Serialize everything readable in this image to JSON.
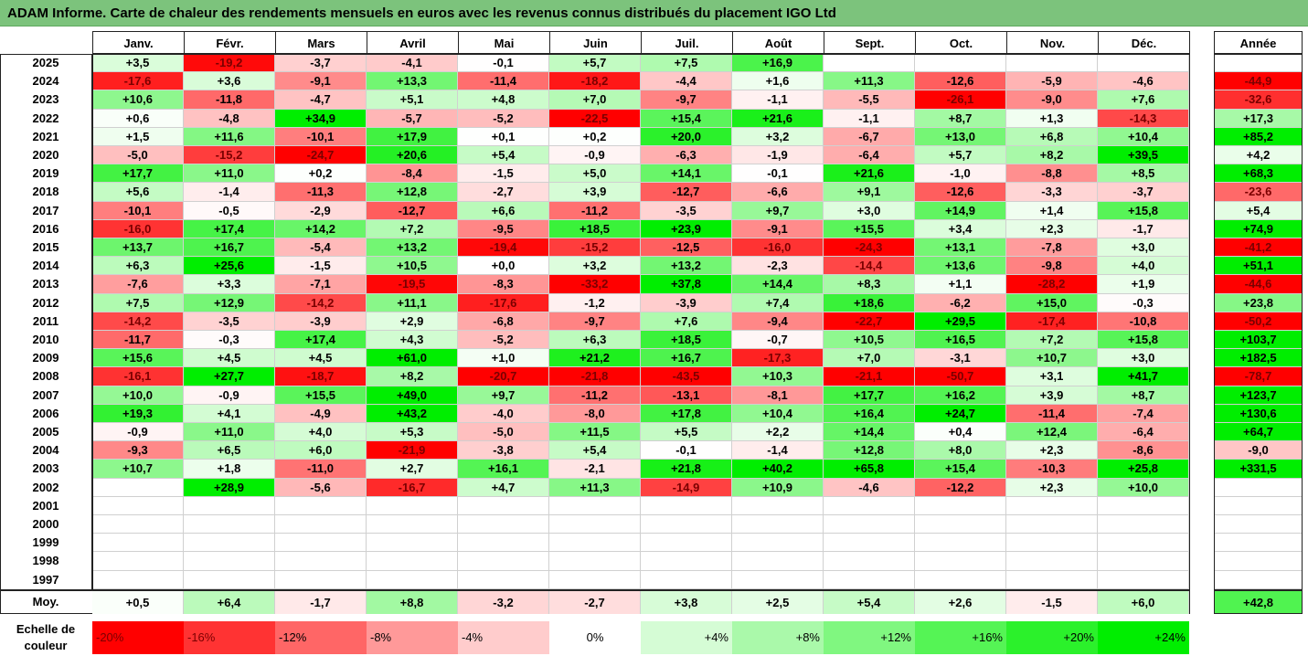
{
  "title": "ADAM Informe. Carte de chaleur des rendements mensuels en euros avec les revenus connus distribués du placement IGO Ltd",
  "colors": {
    "title_bg": "#7cc37c",
    "neg_strong": "#ff0000",
    "pos_strong": "#00ee00",
    "neutral": "#ffffff"
  },
  "chart_data": {
    "type": "heatmap",
    "months": [
      "Janv.",
      "Févr.",
      "Mars",
      "Avril",
      "Mai",
      "Juin",
      "Juil.",
      "Août",
      "Sept.",
      "Oct.",
      "Nov.",
      "Déc."
    ],
    "annual_header": "Année",
    "rows": [
      {
        "year": "2025",
        "values": [
          "+3,5",
          "-19,2",
          "-3,7",
          "-4,1",
          "-0,1",
          "+5,7",
          "+7,5",
          "+16,9",
          "",
          "",
          "",
          ""
        ],
        "annual": ""
      },
      {
        "year": "2024",
        "values": [
          "-17,6",
          "+3,6",
          "-9,1",
          "+13,3",
          "-11,4",
          "-18,2",
          "-4,4",
          "+1,6",
          "+11,3",
          "-12,6",
          "-5,9",
          "-4,6"
        ],
        "annual": "-44,9"
      },
      {
        "year": "2023",
        "values": [
          "+10,6",
          "-11,8",
          "-4,7",
          "+5,1",
          "+4,8",
          "+7,0",
          "-9,7",
          "-1,1",
          "-5,5",
          "-26,1",
          "-9,0",
          "+7,6"
        ],
        "annual": "-32,6"
      },
      {
        "year": "2022",
        "values": [
          "+0,6",
          "-4,8",
          "+34,9",
          "-5,7",
          "-5,2",
          "-22,5",
          "+15,4",
          "+21,6",
          "-1,1",
          "+8,7",
          "+1,3",
          "-14,3"
        ],
        "annual": "+17,3"
      },
      {
        "year": "2021",
        "values": [
          "+1,5",
          "+11,6",
          "-10,1",
          "+17,9",
          "+0,1",
          "+0,2",
          "+20,0",
          "+3,2",
          "-6,7",
          "+13,0",
          "+6,8",
          "+10,4"
        ],
        "annual": "+85,2"
      },
      {
        "year": "2020",
        "values": [
          "-5,0",
          "-15,2",
          "-24,7",
          "+20,6",
          "+5,4",
          "-0,9",
          "-6,3",
          "-1,9",
          "-6,4",
          "+5,7",
          "+8,2",
          "+39,5"
        ],
        "annual": "+4,2"
      },
      {
        "year": "2019",
        "values": [
          "+17,7",
          "+11,0",
          "+0,2",
          "-8,4",
          "-1,5",
          "+5,0",
          "+14,1",
          "-0,1",
          "+21,6",
          "-1,0",
          "-8,8",
          "+8,5"
        ],
        "annual": "+68,3"
      },
      {
        "year": "2018",
        "values": [
          "+5,6",
          "-1,4",
          "-11,3",
          "+12,8",
          "-2,7",
          "+3,9",
          "-12,7",
          "-6,6",
          "+9,1",
          "-12,6",
          "-3,3",
          "-3,7"
        ],
        "annual": "-23,6"
      },
      {
        "year": "2017",
        "values": [
          "-10,1",
          "-0,5",
          "-2,9",
          "-12,7",
          "+6,6",
          "-11,2",
          "-3,5",
          "+9,7",
          "+3,0",
          "+14,9",
          "+1,4",
          "+15,8"
        ],
        "annual": "+5,4"
      },
      {
        "year": "2016",
        "values": [
          "-16,0",
          "+17,4",
          "+14,2",
          "+7,2",
          "-9,5",
          "+18,5",
          "+23,9",
          "-9,1",
          "+15,5",
          "+3,4",
          "+2,3",
          "-1,7"
        ],
        "annual": "+74,9"
      },
      {
        "year": "2015",
        "values": [
          "+13,7",
          "+16,7",
          "-5,4",
          "+13,2",
          "-19,4",
          "-15,2",
          "-12,5",
          "-16,0",
          "-24,3",
          "+13,1",
          "-7,8",
          "+3,0"
        ],
        "annual": "-41,2"
      },
      {
        "year": "2014",
        "values": [
          "+6,3",
          "+25,6",
          "-1,5",
          "+10,5",
          "+0,0",
          "+3,2",
          "+13,2",
          "-2,3",
          "-14,4",
          "+13,6",
          "-9,8",
          "+4,0"
        ],
        "annual": "+51,1"
      },
      {
        "year": "2013",
        "values": [
          "-7,6",
          "+3,3",
          "-7,1",
          "-19,5",
          "-8,3",
          "-33,2",
          "+37,8",
          "+14,4",
          "+8,3",
          "+1,1",
          "-28,2",
          "+1,9"
        ],
        "annual": "-44,6"
      },
      {
        "year": "2012",
        "values": [
          "+7,5",
          "+12,9",
          "-14,2",
          "+11,1",
          "-17,6",
          "-1,2",
          "-3,9",
          "+7,4",
          "+18,6",
          "-6,2",
          "+15,0",
          "-0,3"
        ],
        "annual": "+23,8"
      },
      {
        "year": "2011",
        "values": [
          "-14,2",
          "-3,5",
          "-3,9",
          "+2,9",
          "-6,8",
          "-9,7",
          "+7,6",
          "-9,4",
          "-22,7",
          "+29,5",
          "-17,4",
          "-10,8"
        ],
        "annual": "-50,2"
      },
      {
        "year": "2010",
        "values": [
          "-11,7",
          "-0,3",
          "+17,4",
          "+4,3",
          "-5,2",
          "+6,3",
          "+18,5",
          "-0,7",
          "+10,5",
          "+16,5",
          "+7,2",
          "+15,8"
        ],
        "annual": "+103,7"
      },
      {
        "year": "2009",
        "values": [
          "+15,6",
          "+4,5",
          "+4,5",
          "+61,0",
          "+1,0",
          "+21,2",
          "+16,7",
          "-17,3",
          "+7,0",
          "-3,1",
          "+10,7",
          "+3,0"
        ],
        "annual": "+182,5"
      },
      {
        "year": "2008",
        "values": [
          "-16,1",
          "+27,7",
          "-18,7",
          "+8,2",
          "-20,7",
          "-21,8",
          "-43,5",
          "+10,3",
          "-21,1",
          "-50,7",
          "+3,1",
          "+41,7"
        ],
        "annual": "-78,7"
      },
      {
        "year": "2007",
        "values": [
          "+10,0",
          "-0,9",
          "+15,5",
          "+49,0",
          "+9,7",
          "-11,2",
          "-13,1",
          "-8,1",
          "+17,7",
          "+16,2",
          "+3,9",
          "+8,7"
        ],
        "annual": "+123,7"
      },
      {
        "year": "2006",
        "values": [
          "+19,3",
          "+4,1",
          "-4,9",
          "+43,2",
          "-4,0",
          "-8,0",
          "+17,8",
          "+10,4",
          "+16,4",
          "+24,7",
          "-11,4",
          "-7,4"
        ],
        "annual": "+130,6"
      },
      {
        "year": "2005",
        "values": [
          "-0,9",
          "+11,0",
          "+4,0",
          "+5,3",
          "-5,0",
          "+11,5",
          "+5,5",
          "+2,2",
          "+14,4",
          "+0,4",
          "+12,4",
          "-6,4"
        ],
        "annual": "+64,7"
      },
      {
        "year": "2004",
        "values": [
          "-9,3",
          "+6,5",
          "+6,0",
          "-21,9",
          "-3,8",
          "+5,4",
          "-0,1",
          "-1,4",
          "+12,8",
          "+8,0",
          "+2,3",
          "-8,6"
        ],
        "annual": "-9,0"
      },
      {
        "year": "2003",
        "values": [
          "+10,7",
          "+1,8",
          "-11,0",
          "+2,7",
          "+16,1",
          "-2,1",
          "+21,8",
          "+40,2",
          "+65,8",
          "+15,4",
          "-10,3",
          "+25,8"
        ],
        "annual": "+331,5"
      },
      {
        "year": "2002",
        "values": [
          "",
          "+28,9",
          "-5,6",
          "-16,7",
          "+4,7",
          "+11,3",
          "-14,9",
          "+10,9",
          "-4,6",
          "-12,2",
          "+2,3",
          "+10,0"
        ],
        "annual": ""
      },
      {
        "year": "2001",
        "values": [
          "",
          "",
          "",
          "",
          "",
          "",
          "",
          "",
          "",
          "",
          "",
          ""
        ],
        "annual": ""
      },
      {
        "year": "2000",
        "values": [
          "",
          "",
          "",
          "",
          "",
          "",
          "",
          "",
          "",
          "",
          "",
          ""
        ],
        "annual": ""
      },
      {
        "year": "1999",
        "values": [
          "",
          "",
          "",
          "",
          "",
          "",
          "",
          "",
          "",
          "",
          "",
          ""
        ],
        "annual": ""
      },
      {
        "year": "1998",
        "values": [
          "",
          "",
          "",
          "",
          "",
          "",
          "",
          "",
          "",
          "",
          "",
          ""
        ],
        "annual": ""
      },
      {
        "year": "1997",
        "values": [
          "",
          "",
          "",
          "",
          "",
          "",
          "",
          "",
          "",
          "",
          "",
          ""
        ],
        "annual": ""
      }
    ],
    "average": {
      "label": "Moy.",
      "values": [
        "+0,5",
        "+6,4",
        "-1,7",
        "+8,8",
        "-3,2",
        "-2,7",
        "+3,8",
        "+2,5",
        "+5,4",
        "+2,6",
        "-1,5",
        "+6,0"
      ],
      "annual": "+42,8"
    },
    "scale": {
      "label": "Echelle de couleur",
      "steps": [
        "-20%",
        "-16%",
        "-12%",
        "-8%",
        "-4%",
        "0%",
        "+4%",
        "+8%",
        "+12%",
        "+16%",
        "+20%",
        "+24%"
      ]
    }
  }
}
